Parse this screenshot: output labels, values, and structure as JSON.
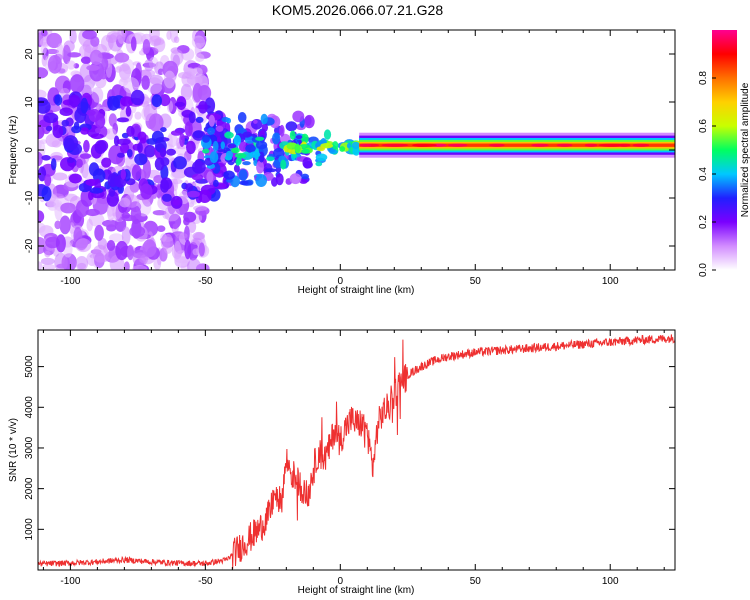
{
  "title": "KOM5.2026.066.07.21.G28",
  "chart_data": [
    {
      "type": "heatmap",
      "xlabel": "Height of straight line (km)",
      "ylabel": "Frequency (Hz)",
      "xlim": [
        -112,
        124
      ],
      "ylim": [
        -25,
        25
      ],
      "xticks": [
        -100,
        -50,
        0,
        50,
        100
      ],
      "yticks": [
        -20,
        -10,
        0,
        10,
        20
      ],
      "colorbar": {
        "label": "Normalized spectral amplitude",
        "range": [
          0,
          1
        ],
        "ticks": [
          "0.0",
          "0.2",
          "0.4",
          "0.6",
          "0.8"
        ],
        "tick_values": [
          0,
          0.2,
          0.4,
          0.6,
          0.8
        ],
        "stops": [
          "#ffffff",
          "#d28cff",
          "#7a00ff",
          "#2020ff",
          "#00c8ff",
          "#00ff60",
          "#c8ff00",
          "#ffd000",
          "#ff7000",
          "#ff0000",
          "#ff0090"
        ]
      },
      "features": {
        "noise_region_x": [
          -112,
          -50
        ],
        "transition_region_x": [
          -50,
          7
        ],
        "signal_band_x": [
          7,
          124
        ],
        "signal_frequency_hz": 1,
        "signal_amplitude": 0.85
      }
    },
    {
      "type": "line",
      "xlabel": "Height of straight line (km)",
      "ylabel": "SNR (10 * v/v)",
      "xlim": [
        -112,
        124
      ],
      "ylim": [
        0,
        5900
      ],
      "xticks": [
        -100,
        -50,
        0,
        50,
        100
      ],
      "yticks": [
        1000,
        2000,
        3000,
        4000,
        5000
      ],
      "color": "#ee3030",
      "series": [
        {
          "name": "SNR",
          "x": [
            -112,
            -100,
            -90,
            -80,
            -70,
            -60,
            -50,
            -42,
            -38,
            -35,
            -30,
            -26,
            -24,
            -22,
            -20,
            -18,
            -16,
            -14,
            -12,
            -10,
            -8,
            -6,
            -4,
            -2,
            0,
            2,
            4,
            6,
            8,
            10,
            12,
            14,
            16,
            18,
            20,
            22,
            25,
            30,
            35,
            40,
            50,
            60,
            70,
            80,
            90,
            100,
            110,
            124
          ],
          "values": [
            150,
            170,
            200,
            250,
            200,
            170,
            160,
            250,
            500,
            700,
            1000,
            1400,
            2000,
            1600,
            2700,
            2400,
            2200,
            2000,
            1800,
            2500,
            2900,
            2700,
            3000,
            3500,
            3200,
            3500,
            3700,
            3600,
            3600,
            3400,
            2500,
            3600,
            3900,
            4000,
            4300,
            4600,
            4800,
            5000,
            5150,
            5250,
            5350,
            5400,
            5450,
            5500,
            5550,
            5600,
            5650,
            5700
          ]
        }
      ]
    }
  ]
}
